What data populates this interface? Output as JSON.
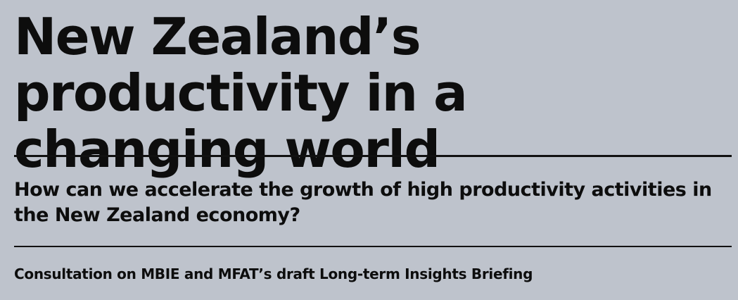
{
  "header": {
    "title": "New Zealand’s productivity in a changing world",
    "subtitle": "How can we accelerate the growth of high productivity activities in the New Zealand economy?",
    "tagline": "Consultation on MBIE and MFAT’s draft Long-term Insights Briefing"
  }
}
